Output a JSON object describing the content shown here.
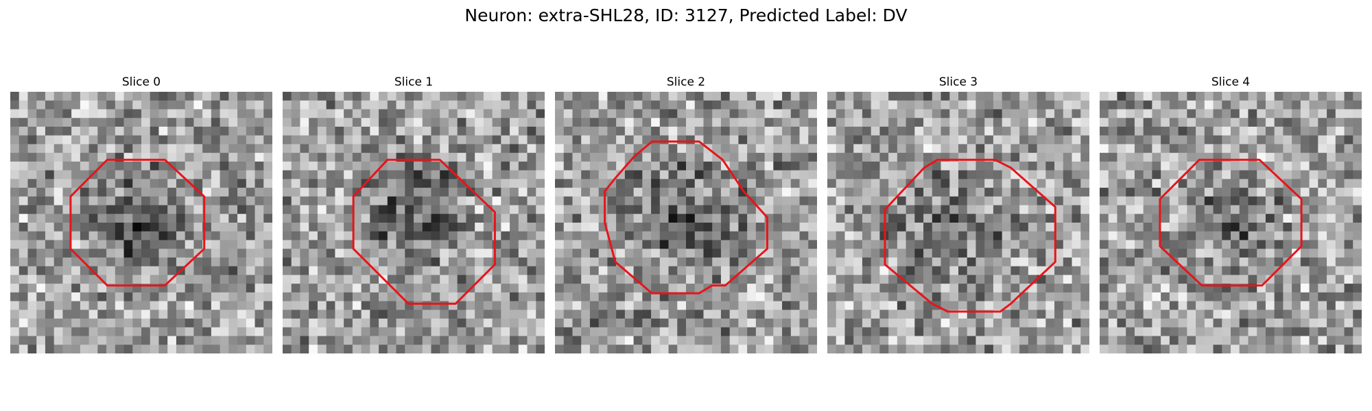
{
  "figure": {
    "title": "Neuron: extra-SHL28, ID: 3127, Predicted Label: DV"
  },
  "colors": {
    "contour": "#e8141a",
    "background": "#ffffff"
  },
  "panels": [
    {
      "title": "Slice 0",
      "seed": 11,
      "dark_center": [
        0.48,
        0.5
      ],
      "dark_radius": 0.25,
      "dark_strength": 0.32,
      "contour": [
        [
          0.37,
          0.26
        ],
        [
          0.59,
          0.26
        ],
        [
          0.74,
          0.4
        ],
        [
          0.74,
          0.6
        ],
        [
          0.59,
          0.74
        ],
        [
          0.37,
          0.74
        ],
        [
          0.23,
          0.6
        ],
        [
          0.23,
          0.4
        ]
      ]
    },
    {
      "title": "Slice 1",
      "seed": 27,
      "dark_center": [
        0.5,
        0.45
      ],
      "dark_radius": 0.26,
      "dark_strength": 0.3,
      "contour": [
        [
          0.4,
          0.26
        ],
        [
          0.6,
          0.26
        ],
        [
          0.81,
          0.46
        ],
        [
          0.81,
          0.66
        ],
        [
          0.66,
          0.81
        ],
        [
          0.48,
          0.81
        ],
        [
          0.27,
          0.6
        ],
        [
          0.27,
          0.4
        ]
      ]
    },
    {
      "title": "Slice 2",
      "seed": 43,
      "dark_center": [
        0.5,
        0.48
      ],
      "dark_radius": 0.3,
      "dark_strength": 0.28,
      "contour": [
        [
          0.37,
          0.19
        ],
        [
          0.55,
          0.19
        ],
        [
          0.64,
          0.26
        ],
        [
          0.72,
          0.38
        ],
        [
          0.81,
          0.48
        ],
        [
          0.81,
          0.6
        ],
        [
          0.65,
          0.74
        ],
        [
          0.6,
          0.74
        ],
        [
          0.55,
          0.77
        ],
        [
          0.37,
          0.77
        ],
        [
          0.23,
          0.65
        ],
        [
          0.19,
          0.5
        ],
        [
          0.19,
          0.38
        ],
        [
          0.23,
          0.33
        ],
        [
          0.3,
          0.25
        ]
      ]
    },
    {
      "title": "Slice 3",
      "seed": 61,
      "dark_center": [
        0.45,
        0.55
      ],
      "dark_radius": 0.3,
      "dark_strength": 0.24,
      "contour": [
        [
          0.42,
          0.26
        ],
        [
          0.64,
          0.26
        ],
        [
          0.7,
          0.29
        ],
        [
          0.87,
          0.44
        ],
        [
          0.87,
          0.65
        ],
        [
          0.7,
          0.81
        ],
        [
          0.66,
          0.84
        ],
        [
          0.46,
          0.84
        ],
        [
          0.4,
          0.81
        ],
        [
          0.22,
          0.66
        ],
        [
          0.22,
          0.45
        ],
        [
          0.37,
          0.29
        ]
      ]
    },
    {
      "title": "Slice 4",
      "seed": 79,
      "dark_center": [
        0.52,
        0.5
      ],
      "dark_radius": 0.22,
      "dark_strength": 0.22,
      "contour": [
        [
          0.38,
          0.26
        ],
        [
          0.61,
          0.26
        ],
        [
          0.77,
          0.41
        ],
        [
          0.77,
          0.59
        ],
        [
          0.62,
          0.74
        ],
        [
          0.39,
          0.74
        ],
        [
          0.23,
          0.59
        ],
        [
          0.23,
          0.41
        ]
      ]
    }
  ]
}
